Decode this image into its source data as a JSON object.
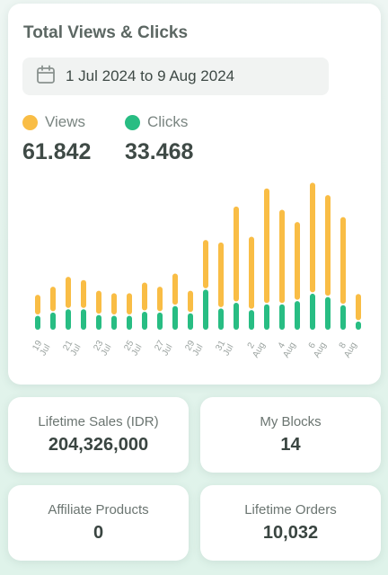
{
  "chart_card": {
    "title": "Total Views & Clicks",
    "date_range": "1 Jul 2024 to 9 Aug 2024",
    "icon": "calendar-icon"
  },
  "legend": {
    "views_label": "Views",
    "views_total": "61.842",
    "clicks_label": "Clicks",
    "clicks_total": "33.468"
  },
  "colors": {
    "views": "#f9bd45",
    "clicks": "#28bd83"
  },
  "chart_data": {
    "type": "bar",
    "stacked": true,
    "categories": [
      "19 Jul",
      "20 Jul",
      "21 Jul",
      "22 Jul",
      "23 Jul",
      "24 Jul",
      "25 Jul",
      "26 Jul",
      "27 Jul",
      "28 Jul",
      "29 Jul",
      "30 Jul",
      "31 Jul",
      "1 Aug",
      "2 Aug",
      "3 Aug",
      "4 Aug",
      "5 Aug",
      "6 Aug",
      "7 Aug",
      "8 Aug",
      "9 Aug"
    ],
    "tick_labels": [
      {
        "day": "19",
        "month": "Jul"
      },
      {
        "day": "21",
        "month": "Jul"
      },
      {
        "day": "23",
        "month": "Jul"
      },
      {
        "day": "25",
        "month": "Jul"
      },
      {
        "day": "27",
        "month": "Jul"
      },
      {
        "day": "29",
        "month": "Jul"
      },
      {
        "day": "31",
        "month": "Jul"
      },
      {
        "day": "2",
        "month": "Aug"
      },
      {
        "day": "4",
        "month": "Aug"
      },
      {
        "day": "6",
        "month": "Aug"
      },
      {
        "day": "8",
        "month": "Aug"
      }
    ],
    "series": [
      {
        "name": "Clicks",
        "values": [
          17,
          21,
          25,
          25,
          18,
          17,
          17,
          22,
          21,
          29,
          20,
          49,
          26,
          33,
          24,
          31,
          31,
          35,
          44,
          40,
          30,
          10
        ]
      },
      {
        "name": "Views",
        "values": [
          24,
          30,
          38,
          34,
          28,
          26,
          26,
          34,
          30,
          38,
          26,
          59,
          79,
          116,
          88,
          140,
          114,
          95,
          134,
          123,
          106,
          32
        ]
      }
    ],
    "ylim": [
      0,
      190
    ],
    "grid": false,
    "legend_position": "top-left"
  },
  "stats": [
    {
      "label": "Lifetime Sales (IDR)",
      "value": "204,326,000"
    },
    {
      "label": "My Blocks",
      "value": "14"
    },
    {
      "label": "Affiliate Products",
      "value": "0"
    },
    {
      "label": "Lifetime Orders",
      "value": "10,032"
    }
  ]
}
